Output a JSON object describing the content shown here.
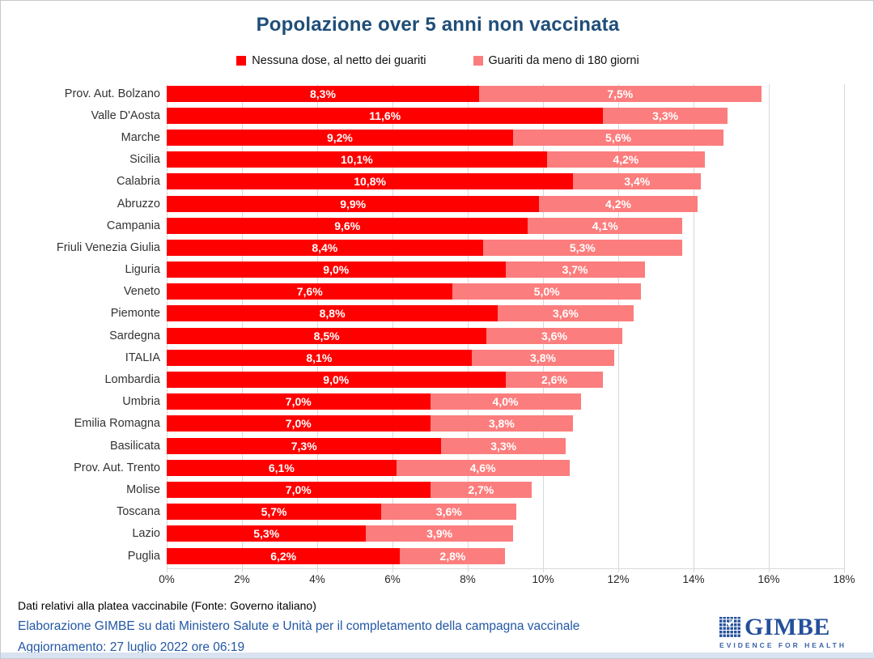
{
  "title": "Popolazione over 5 anni non vaccinata",
  "legend": [
    {
      "label": "Nessuna dose, al netto dei guariti",
      "color": "#FE0000"
    },
    {
      "label": "Guariti da meno di 180 giorni",
      "color": "#FC7D7D"
    }
  ],
  "chart_data": {
    "type": "bar",
    "orientation": "horizontal",
    "stacked": true,
    "title": "Popolazione over 5 anni non vaccinata",
    "categories": [
      "Prov. Aut. Bolzano",
      "Valle D'Aosta",
      "Marche",
      "Sicilia",
      "Calabria",
      "Abruzzo",
      "Campania",
      "Friuli Venezia Giulia",
      "Liguria",
      "Veneto",
      "Piemonte",
      "Sardegna",
      "ITALIA",
      "Lombardia",
      "Umbria",
      "Emilia Romagna",
      "Basilicata",
      "Prov. Aut. Trento",
      "Molise",
      "Toscana",
      "Lazio",
      "Puglia"
    ],
    "series": [
      {
        "name": "Nessuna dose, al netto dei guariti",
        "color": "#FE0000",
        "values": [
          8.3,
          11.6,
          9.2,
          10.1,
          10.8,
          9.9,
          9.6,
          8.4,
          9.0,
          7.6,
          8.8,
          8.5,
          8.1,
          9.0,
          7.0,
          7.0,
          7.3,
          6.1,
          7.0,
          5.7,
          5.3,
          6.2
        ]
      },
      {
        "name": "Guariti da meno di 180 giorni",
        "color": "#FC7D7D",
        "values": [
          7.5,
          3.3,
          5.6,
          4.2,
          3.4,
          4.2,
          4.1,
          5.3,
          3.7,
          5.0,
          3.6,
          3.6,
          3.8,
          2.6,
          4.0,
          3.8,
          3.3,
          4.6,
          2.7,
          3.6,
          3.9,
          2.8
        ]
      }
    ],
    "x_ticks": [
      "0%",
      "2%",
      "4%",
      "6%",
      "8%",
      "10%",
      "12%",
      "14%",
      "16%",
      "18%"
    ],
    "xlim": [
      0,
      18
    ],
    "grid": "vertical",
    "legend_position": "top",
    "value_label_format": "comma-decimal-percent"
  },
  "footnote": "Dati relativi alla platea vaccinabile (Fonte: Governo italiano)",
  "elaboration": "Elaborazione GIMBE su dati Ministero Salute e Unità per il completamento della campagna vaccinale",
  "update": "Aggiornamento: 27 luglio 2022 ore 06:19",
  "logo": {
    "name": "GIMBE",
    "tagline": "EVIDENCE FOR HEALTH"
  }
}
